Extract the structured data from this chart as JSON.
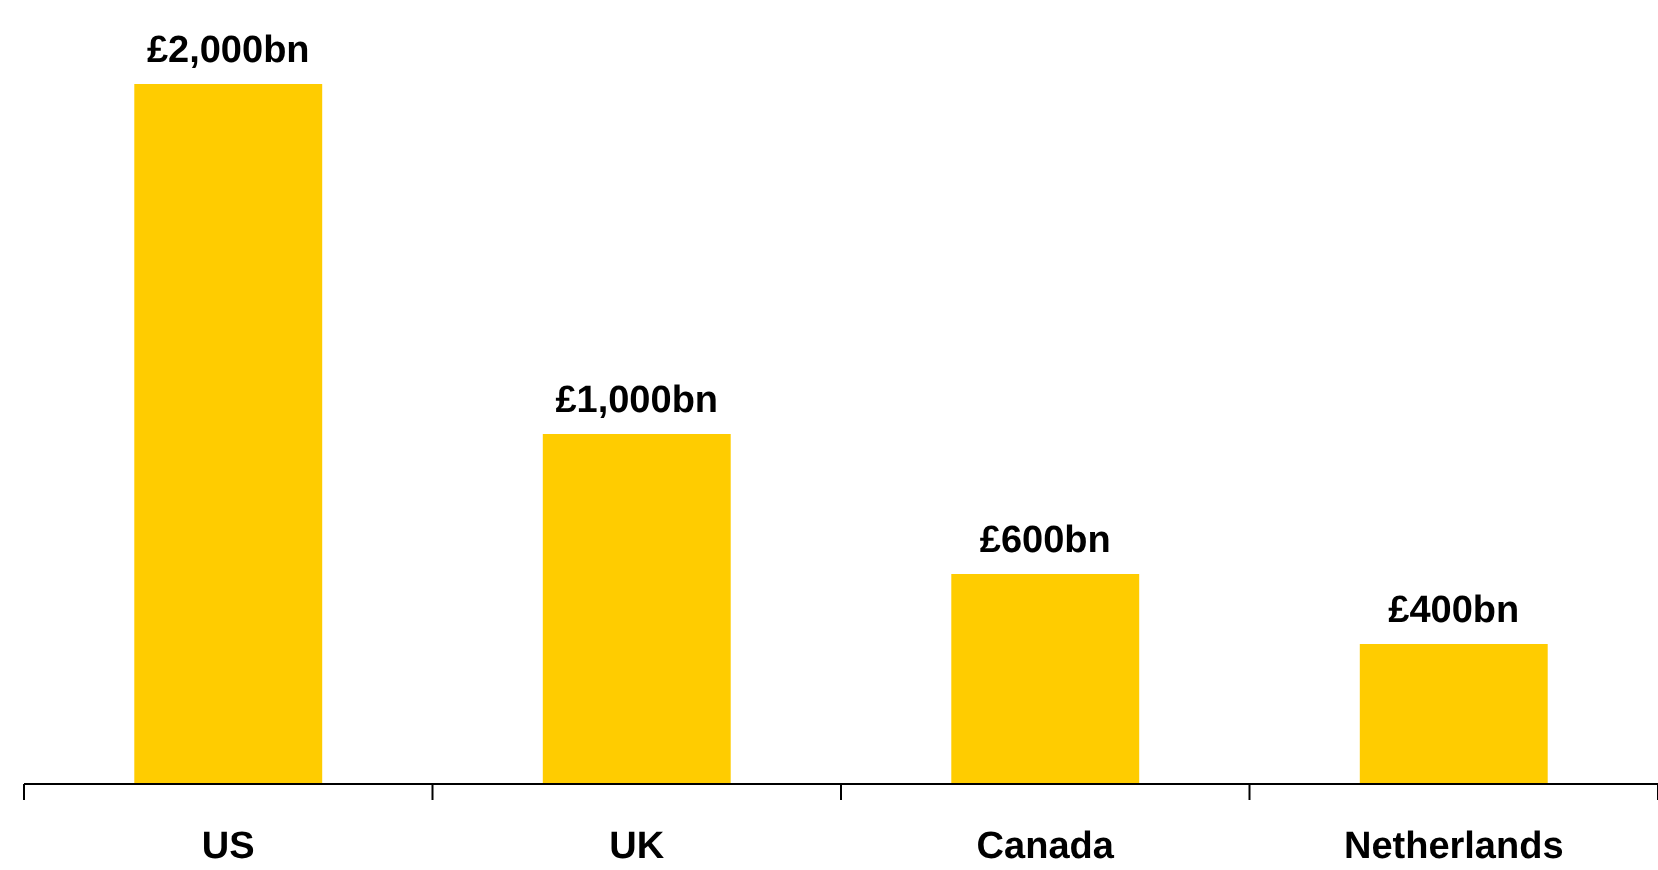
{
  "chart_data": {
    "type": "bar",
    "categories": [
      "US",
      "UK",
      "Canada",
      "Netherlands"
    ],
    "values": [
      2000,
      1000,
      600,
      400
    ],
    "color": "#ffcc00",
    "value_labels": [
      "£2,000bn",
      "£1,000bn",
      "£600bn",
      "£400bn"
    ]
  }
}
